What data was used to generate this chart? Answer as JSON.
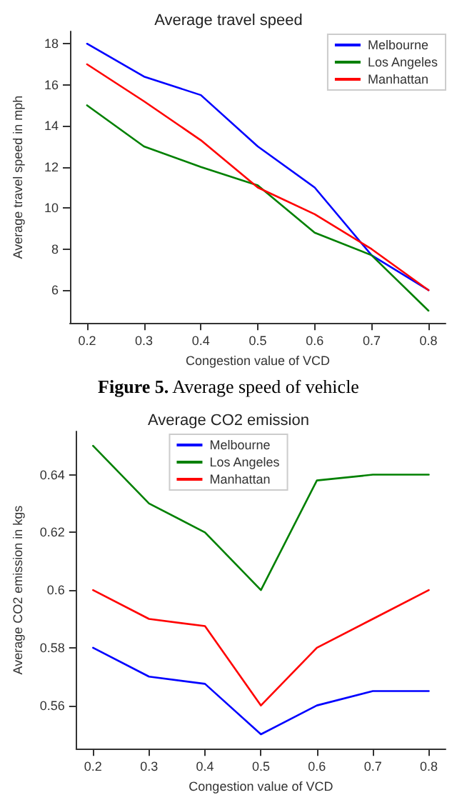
{
  "chart_data": [
    {
      "type": "line",
      "title": "Average travel speed",
      "xlabel": "Congestion value of VCD",
      "ylabel": "Average travel speed in mph",
      "annotations": [
        "Figure 5. Average speed of vehicle"
      ],
      "x": [
        0.2,
        0.3,
        0.4,
        0.5,
        0.6,
        0.7,
        0.8
      ],
      "xlim": [
        0.17,
        0.83
      ],
      "xticks": [
        0.2,
        0.3,
        0.4,
        0.5,
        0.6,
        0.7,
        0.8
      ],
      "ylim": [
        4.4,
        18.6
      ],
      "yticks": [
        6,
        8,
        10,
        12,
        14,
        16,
        18
      ],
      "legend": "top right",
      "grid": false,
      "marker": "none",
      "series": [
        {
          "name": "Melbourne",
          "color": "#0000ff",
          "values": [
            18,
            16.4,
            15.5,
            13,
            11,
            7.7,
            6
          ]
        },
        {
          "name": "Los Angeles",
          "color": "#008000",
          "values": [
            15,
            13,
            12,
            11.1,
            8.8,
            7.7,
            5
          ]
        },
        {
          "name": "Manhattan",
          "color": "#ff0000",
          "values": [
            17,
            15.2,
            13.3,
            11,
            9.7,
            8,
            6
          ]
        }
      ]
    },
    {
      "type": "line",
      "title": "Average CO2 emission",
      "xlabel": "Congestion value of VCD",
      "ylabel": "Average CO2 emission in kgs",
      "x": [
        0.2,
        0.3,
        0.4,
        0.5,
        0.6,
        0.7,
        0.8
      ],
      "xlim": [
        0.17,
        0.83
      ],
      "xticks": [
        0.2,
        0.3,
        0.4,
        0.5,
        0.6,
        0.7,
        0.8
      ],
      "ylim": [
        0.545,
        0.655
      ],
      "yticks": [
        0.56,
        0.58,
        0.6,
        0.62,
        0.64
      ],
      "legend": "top",
      "grid": false,
      "marker": "none",
      "series": [
        {
          "name": "Melbourne",
          "color": "#0000ff",
          "values": [
            0.58,
            0.57,
            0.5675,
            0.55,
            0.56,
            0.565,
            0.565
          ]
        },
        {
          "name": "Los Angeles",
          "color": "#008000",
          "values": [
            0.65,
            0.63,
            0.62,
            0.6,
            0.638,
            0.64,
            0.64
          ]
        },
        {
          "name": "Manhattan",
          "color": "#ff0000",
          "values": [
            0.6,
            0.59,
            0.5875,
            0.56,
            0.58,
            0.59,
            0.6
          ]
        }
      ]
    }
  ]
}
